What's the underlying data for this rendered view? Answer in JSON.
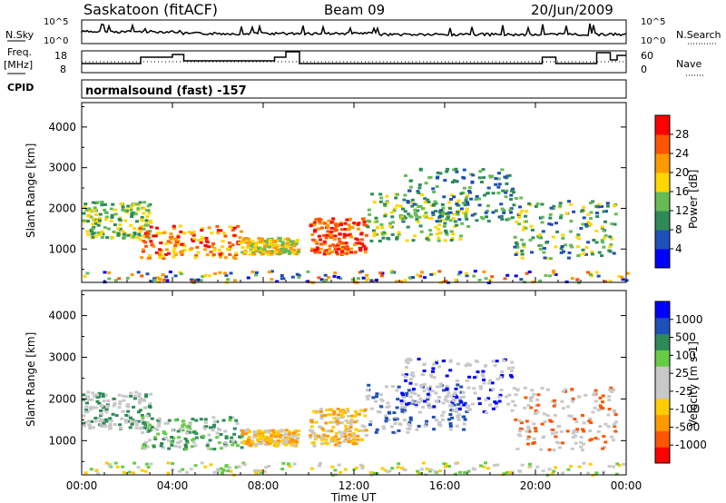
{
  "header": {
    "station": "Saskatoon (fitACF)",
    "beam": "Beam 09",
    "date": "20/Jun/2009"
  },
  "top_panels": {
    "nsky_label": "N.Sky",
    "nsky_ticks": [
      "10^5",
      "10^0"
    ],
    "nsearch_label": "N.Search",
    "nsearch_ticks": [
      "10^5",
      "10^0"
    ],
    "freq_label_1": "Freq.",
    "freq_label_2": "[MHz]",
    "freq_ticks": [
      "18",
      "8"
    ],
    "nave_label": "Nave",
    "nave_ticks": [
      "60",
      "0"
    ],
    "cpid_label": "CPID",
    "cpid_text": "normalsound (fast) -157"
  },
  "colors": {
    "power_scale": [
      "#0000ff",
      "#1f4fb8",
      "#2e8b57",
      "#66bb55",
      "#ffd700",
      "#ff9900",
      "#ff5500",
      "#ff0000"
    ],
    "velocity_scale": [
      "#ff0000",
      "#ff5500",
      "#ff9900",
      "#ffcc00",
      "#c8c8c8",
      "#c8c8c8",
      "#66cc44",
      "#2e8b57",
      "#1f4fb8",
      "#0000ff"
    ]
  },
  "chart_data": [
    {
      "type": "heatmap",
      "name": "power",
      "ylabel": "Slant Range [km]",
      "yticks": [
        "1000",
        "2000",
        "3000",
        "4000"
      ],
      "ylim": [
        180,
        4600
      ],
      "colorbar_label": "Power [dB]",
      "colorbar_ticks": [
        "4",
        "8",
        "12",
        "16",
        "20",
        "24",
        "28"
      ],
      "clim": [
        0,
        32
      ]
    },
    {
      "type": "heatmap",
      "name": "velocity",
      "ylabel": "Slant Range [km]",
      "yticks": [
        "1000",
        "2000",
        "3000",
        "4000"
      ],
      "ylim": [
        180,
        4600
      ],
      "colorbar_label": "Velocity [m s-1]",
      "colorbar_ticks": [
        "-1000",
        "-500",
        "-100",
        "-25",
        "25",
        "100",
        "500",
        "1000"
      ]
    }
  ],
  "time_axis": {
    "xlabel": "Time UT",
    "ticks": [
      "00:00",
      "04:00",
      "08:00",
      "12:00",
      "16:00",
      "20:00",
      "00:00"
    ],
    "xlim_hours": [
      0,
      24
    ]
  }
}
